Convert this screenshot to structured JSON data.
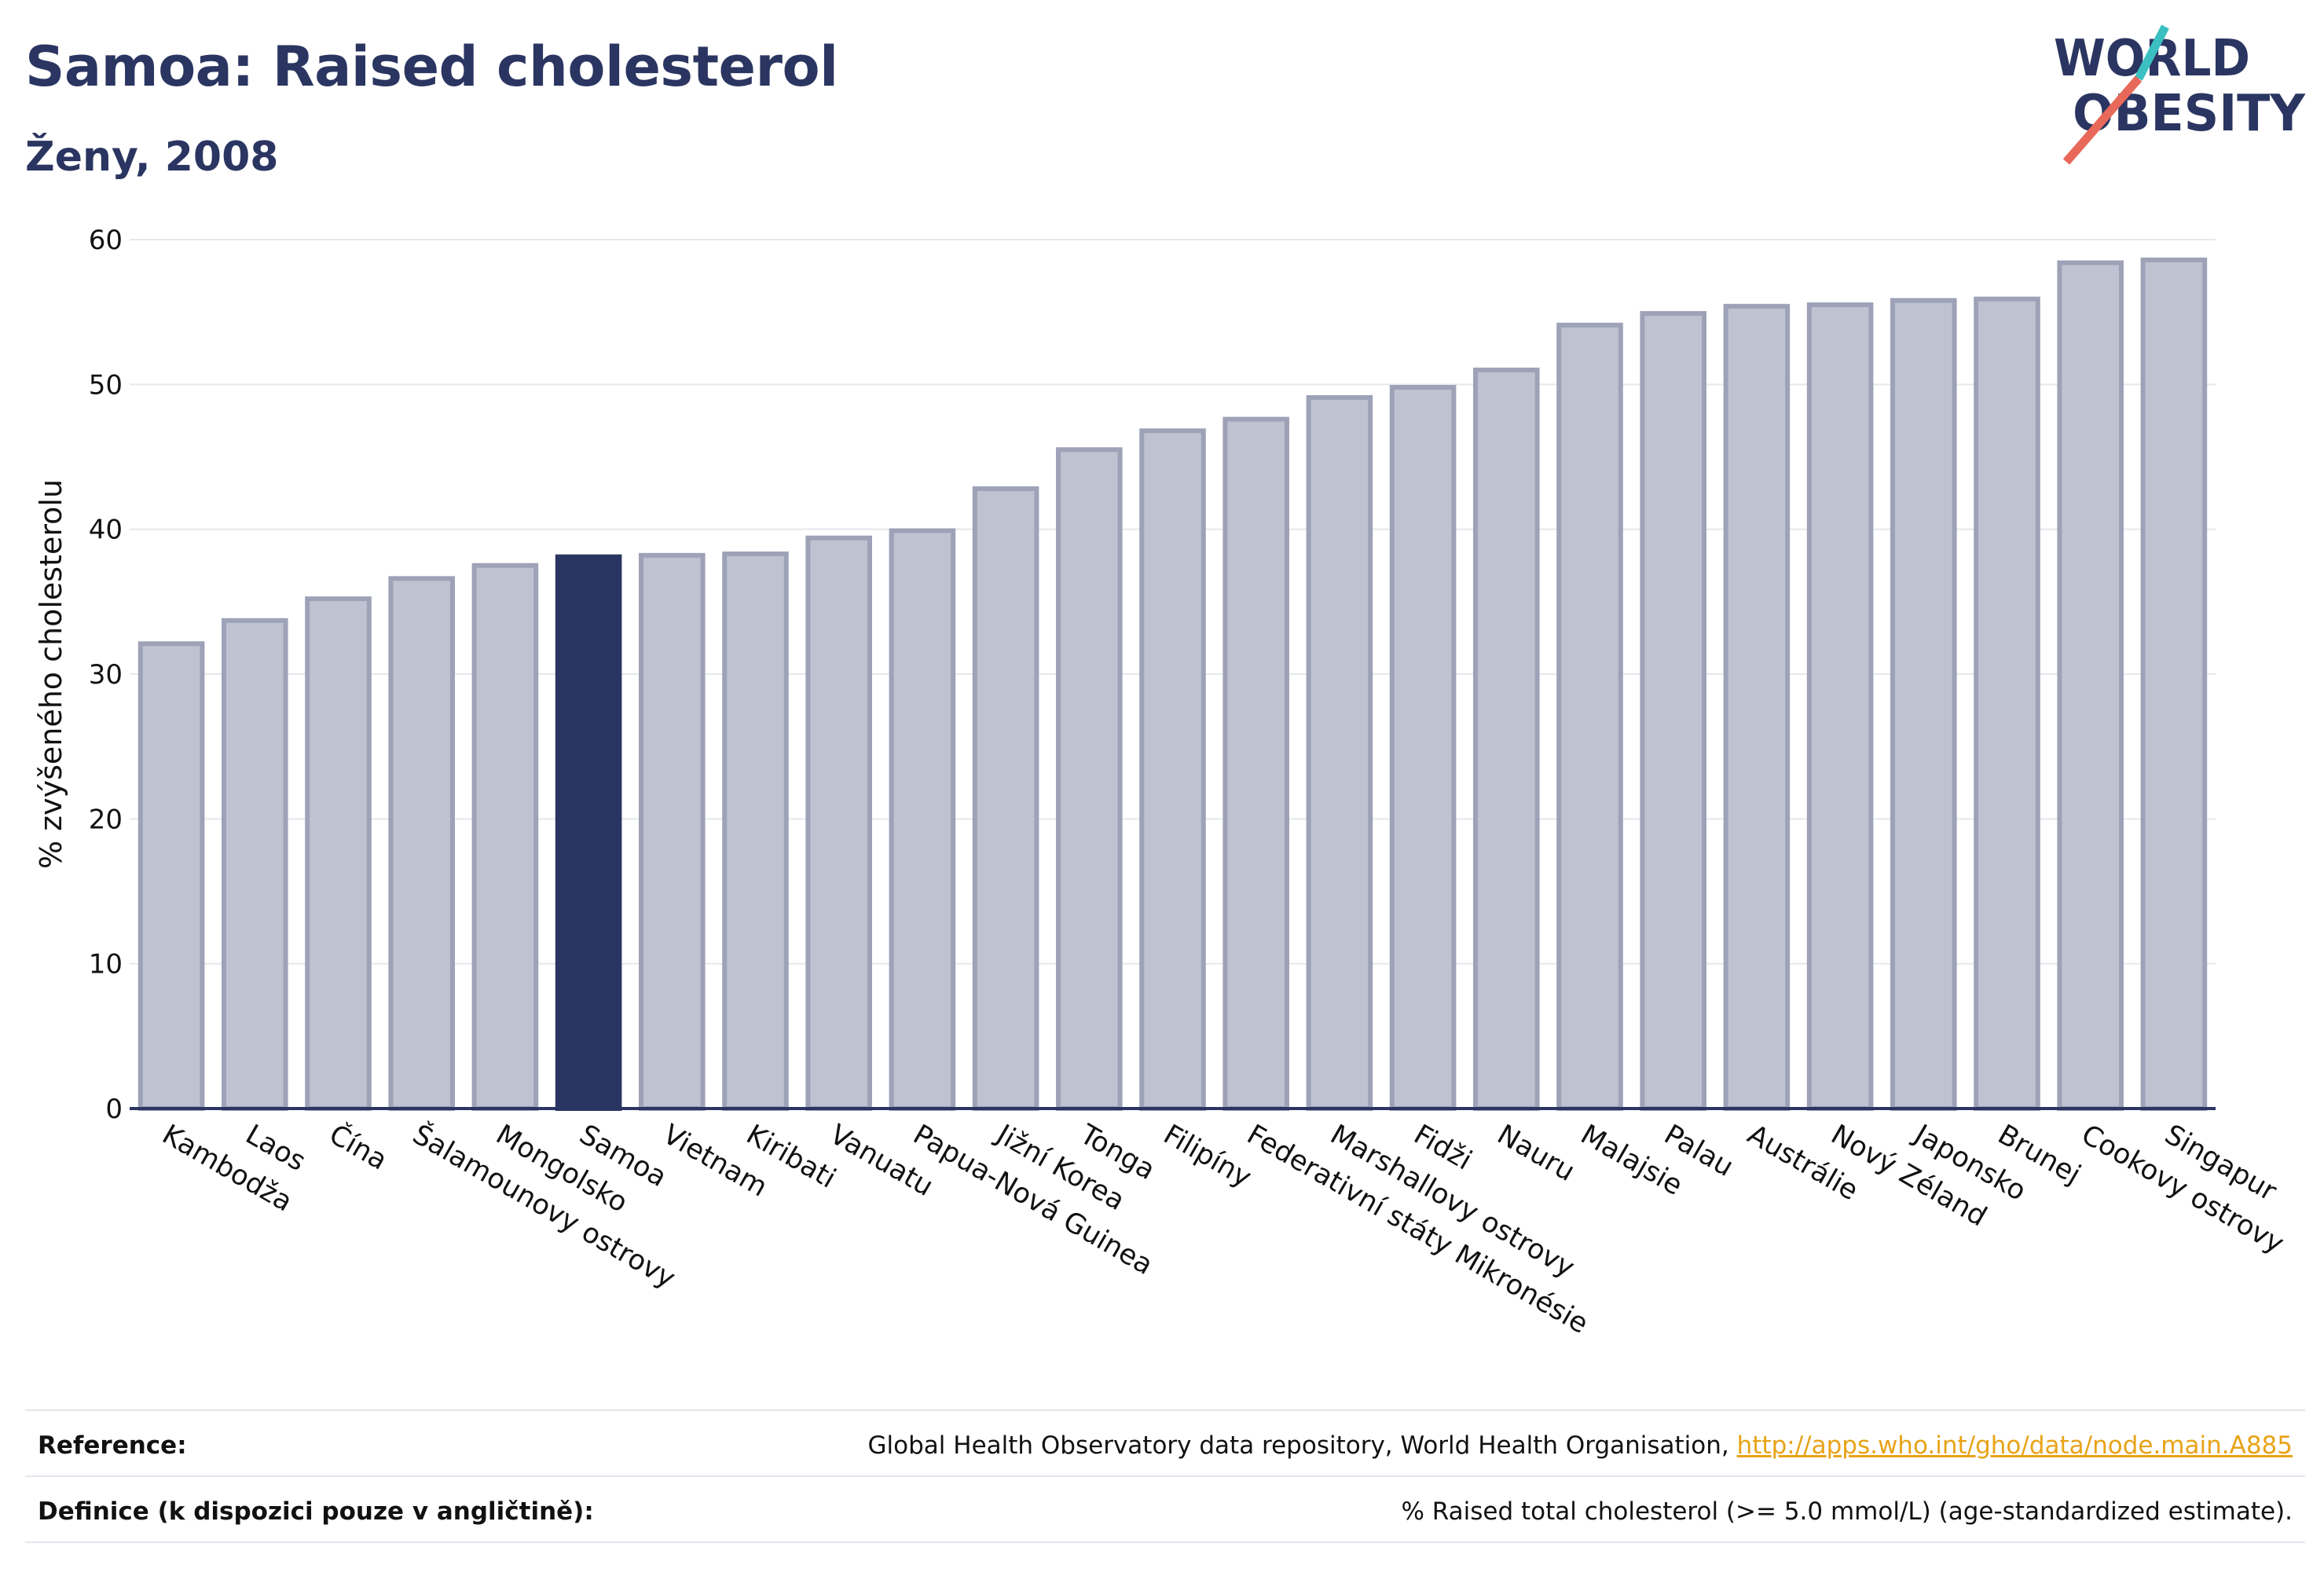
{
  "header": {
    "title": "Samoa: Raised cholesterol",
    "subtitle": "Ženy, 2008"
  },
  "logo": {
    "line1": "WORLD",
    "line2": "OBESITY",
    "colors": {
      "text": "#2b3561",
      "slash_teal": "#3bbfc1",
      "slash_coral": "#e8685a"
    }
  },
  "chart_data": {
    "type": "bar",
    "title": "",
    "xlabel": "",
    "ylabel": "% zvýšeného cholesterolu",
    "ylim": [
      0,
      60
    ],
    "yticks": [
      0,
      10,
      20,
      30,
      40,
      50,
      60
    ],
    "grid": true,
    "highlight": "Samoa",
    "colors": {
      "bar": "#bfc2d0",
      "bar_edge": "#9da2b8",
      "highlight": "#2b3561",
      "grid": "#e6e8ee",
      "axis": "#2b3561"
    },
    "categories": [
      "Kambodža",
      "Laos",
      "Čína",
      "Šalamounovy ostrovy",
      "Mongolsko",
      "Samoa",
      "Vietnam",
      "Kiribati",
      "Vanuatu",
      "Papua-Nová Guinea",
      "Jižní Korea",
      "Tonga",
      "Filipíny",
      "Federativní státy Mikronésie",
      "Marshallovy ostrovy",
      "Fidži",
      "Nauru",
      "Malajsie",
      "Palau",
      "Austrálie",
      "Nový Zéland",
      "Japonsko",
      "Brunej",
      "Cookovy ostrovy",
      "Singapur"
    ],
    "values": [
      32.1,
      33.7,
      35.2,
      36.6,
      37.5,
      38.1,
      38.2,
      38.3,
      39.4,
      39.9,
      42.8,
      45.5,
      46.8,
      47.6,
      49.1,
      49.8,
      51.0,
      54.1,
      54.9,
      55.4,
      55.5,
      55.8,
      55.9,
      58.4,
      58.6
    ]
  },
  "footer": {
    "reference_label": "Reference:",
    "reference_text": "Global Health Observatory data repository, World Health Organisation, ",
    "reference_link": "http://apps.who.int/gho/data/node.main.A885",
    "definition_label": "Definice (k dispozici pouze v angličtině):",
    "definition_text": "% Raised total cholesterol (>= 5.0 mmol/L) (age-standardized estimate)."
  }
}
